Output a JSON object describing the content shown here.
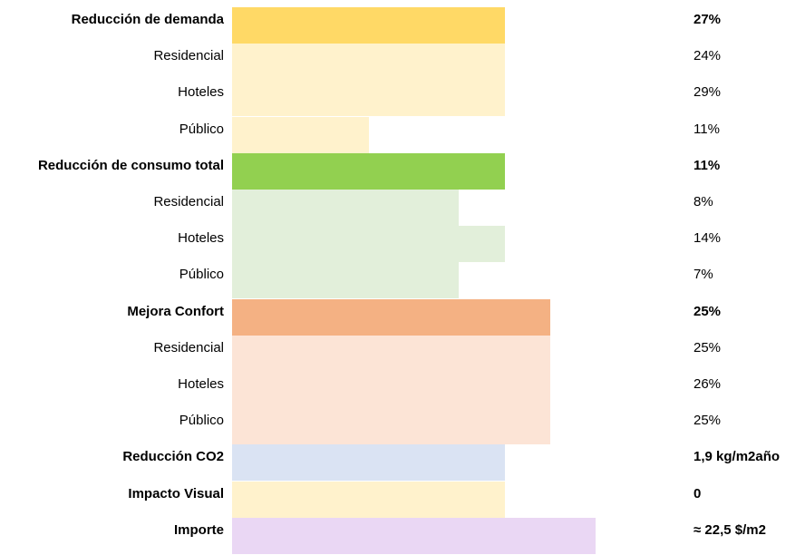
{
  "sections": [
    {
      "label": "Reducción de demanda",
      "value": "27%",
      "items": [
        {
          "label": "Residencial",
          "value": "24%"
        },
        {
          "label": "Hoteles",
          "value": "29%"
        },
        {
          "label": "Público",
          "value": "11%"
        }
      ]
    },
    {
      "label": "Reducción de consumo total",
      "value": "11%",
      "items": [
        {
          "label": "Residencial",
          "value": "8%"
        },
        {
          "label": "Hoteles",
          "value": "14%"
        },
        {
          "label": "Público",
          "value": "7%"
        }
      ]
    },
    {
      "label": "Mejora Confort",
      "value": "25%",
      "items": [
        {
          "label": "Residencial",
          "value": "25%"
        },
        {
          "label": "Hoteles",
          "value": "26%"
        },
        {
          "label": "Público",
          "value": "25%"
        }
      ]
    },
    {
      "label": "Reducción CO2",
      "value": "1,9 kg/m2año"
    },
    {
      "label": "Impacto Visual",
      "value": "0"
    },
    {
      "label": "Importe",
      "value": "≈ 22,5 $/m2"
    }
  ]
}
